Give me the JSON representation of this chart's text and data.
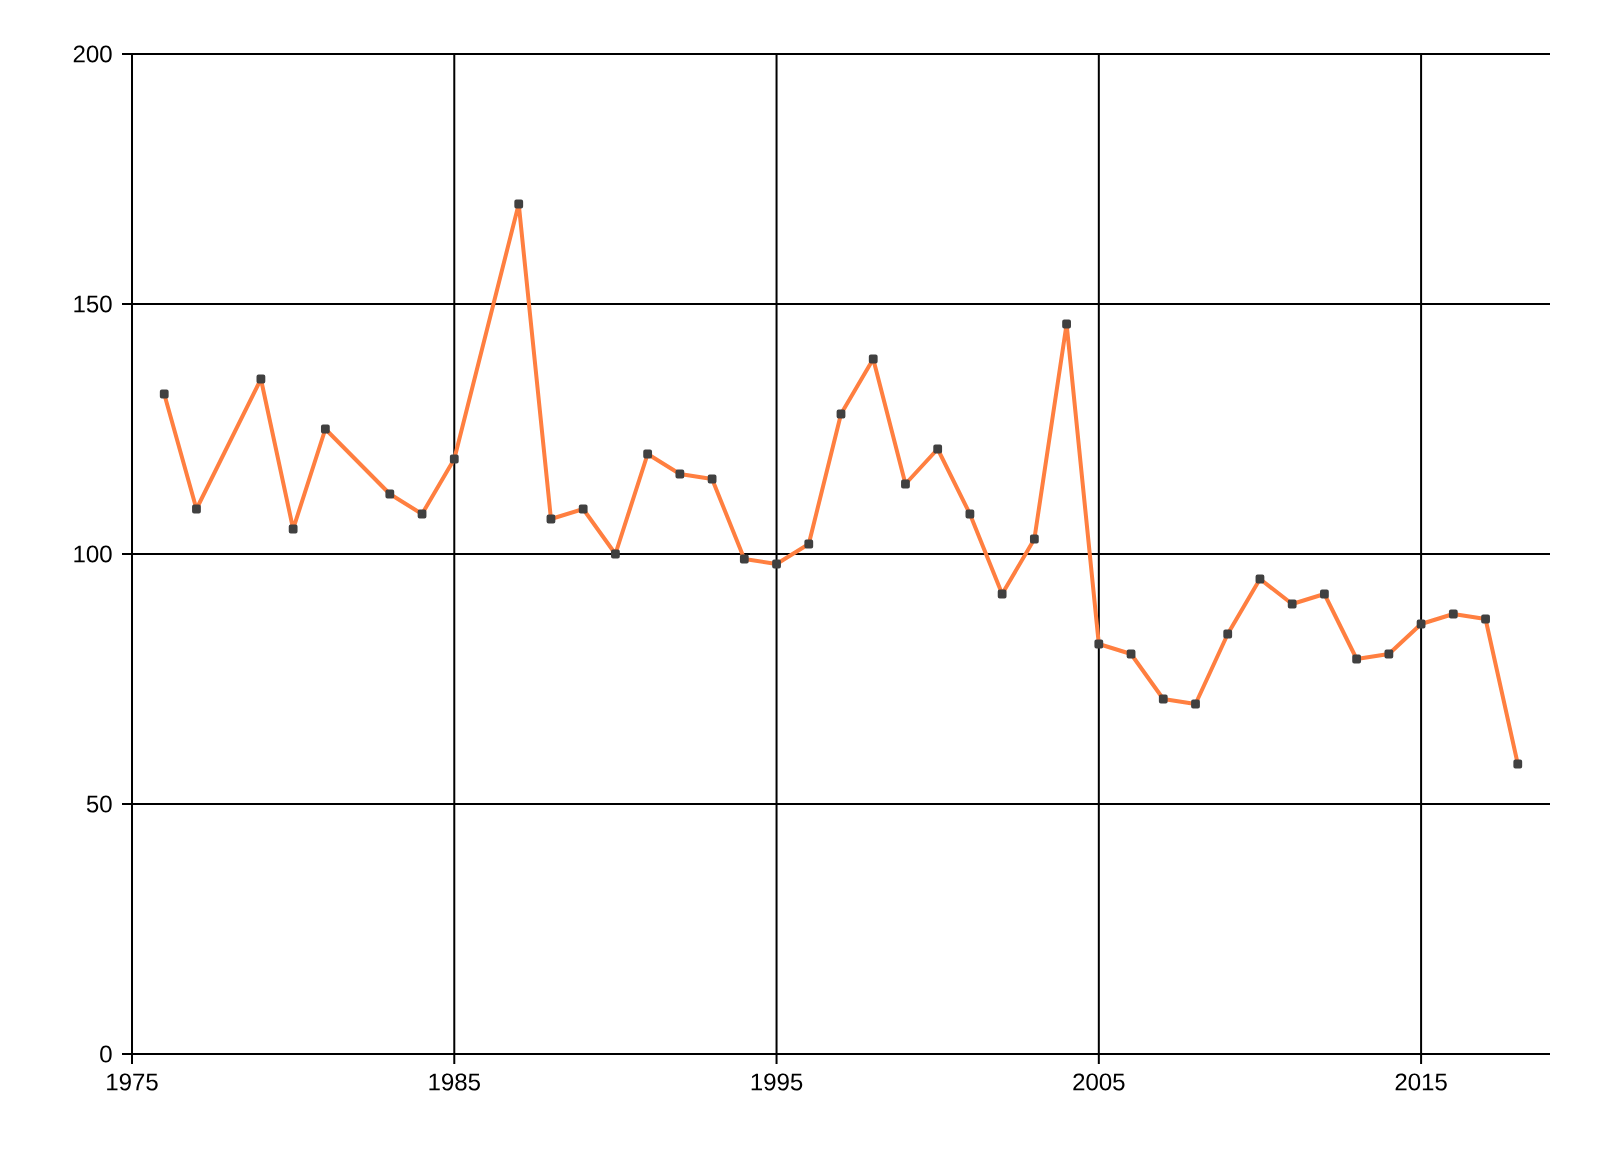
{
  "chart_data": {
    "type": "line",
    "x": [
      1976,
      1977,
      1979,
      1980,
      1981,
      1983,
      1984,
      1985,
      1987,
      1988,
      1989,
      1990,
      1991,
      1992,
      1993,
      1994,
      1995,
      1996,
      1997,
      1998,
      1999,
      2000,
      2001,
      2002,
      2003,
      2004,
      2005,
      2006,
      2007,
      2008,
      2009,
      2010,
      2011,
      2012,
      2013,
      2014,
      2015,
      2016,
      2017,
      2018
    ],
    "values": [
      132,
      109,
      135,
      105,
      125,
      112,
      108,
      119,
      170,
      107,
      109,
      100,
      120,
      116,
      115,
      99,
      98,
      102,
      128,
      139,
      114,
      121,
      108,
      92,
      103,
      146,
      82,
      80,
      71,
      70,
      84,
      95,
      90,
      92,
      79,
      80,
      86,
      88,
      87,
      58
    ],
    "color": "#ff7f40",
    "xlim": [
      1975,
      2019
    ],
    "ylim": [
      0,
      200
    ],
    "xticks": [
      1975,
      1985,
      1995,
      2005,
      2015
    ],
    "yticks": [
      0,
      50,
      100,
      150,
      200
    ],
    "grid": true,
    "marker": "square",
    "line_style": "solid"
  }
}
